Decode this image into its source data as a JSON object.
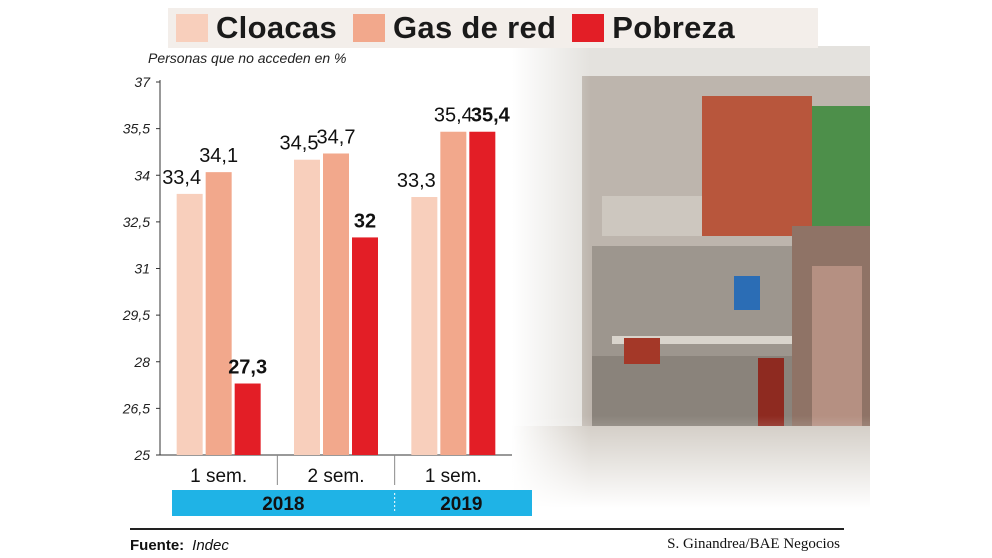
{
  "legend": [
    {
      "label": "Cloacas",
      "color": "#f8cfbc"
    },
    {
      "label": "Gas de red",
      "color": "#f2a88c"
    },
    {
      "label": "Pobreza",
      "color": "#e31e26"
    }
  ],
  "unit_label": "Personas que no acceden en %",
  "chart_data": {
    "type": "bar",
    "categories": [
      "1 sem.",
      "2 sem.",
      "1 sem."
    ],
    "years": [
      {
        "label": "2018",
        "span": [
          0,
          1
        ]
      },
      {
        "label": "2019",
        "span": [
          2,
          2
        ]
      }
    ],
    "series": [
      {
        "name": "Cloacas",
        "values": [
          33.4,
          34.5,
          33.3
        ],
        "labels": [
          "33,4",
          "34,5",
          "33,3"
        ],
        "color": "#f8cfbc"
      },
      {
        "name": "Gas de red",
        "values": [
          34.1,
          34.7,
          35.4
        ],
        "labels": [
          "34,1",
          "34,7",
          "35,4"
        ],
        "color": "#f2a88c"
      },
      {
        "name": "Pobreza",
        "values": [
          27.3,
          32,
          35.4
        ],
        "labels": [
          "27,3",
          "32",
          "35,4"
        ],
        "color": "#e31e26"
      }
    ],
    "ylim": [
      25,
      37
    ],
    "yticks": [
      25,
      26.5,
      28,
      29.5,
      31,
      32.5,
      34,
      35.5,
      37
    ],
    "ytick_labels": [
      "25",
      "26,5",
      "28",
      "29,5",
      "31",
      "32,5",
      "34",
      "35,5",
      "37"
    ],
    "year_bar_color": "#1fb3e6"
  },
  "footer": {
    "source_label": "Fuente:",
    "source_value": "Indec",
    "credit": "S. Ginandrea/BAE Negocios"
  }
}
